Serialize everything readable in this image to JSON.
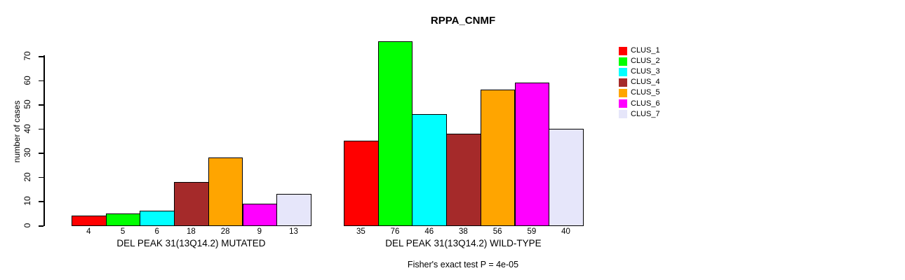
{
  "chart_data": {
    "type": "bar",
    "title": "RPPA_CNMF",
    "ylabel": "number of cases",
    "xlabel": "",
    "ylim": [
      0,
      70
    ],
    "yticks": [
      0,
      10,
      20,
      30,
      40,
      50,
      60,
      70
    ],
    "grid": false,
    "legend_position": "right",
    "clusters": [
      {
        "name": "CLUS_1",
        "color": "#FF0000"
      },
      {
        "name": "CLUS_2",
        "color": "#00FF00"
      },
      {
        "name": "CLUS_3",
        "color": "#00FFFF"
      },
      {
        "name": "CLUS_4",
        "color": "#A52A2A"
      },
      {
        "name": "CLUS_5",
        "color": "#FFA500"
      },
      {
        "name": "CLUS_6",
        "color": "#FF00FF"
      },
      {
        "name": "CLUS_7",
        "color": "#E6E6FA"
      }
    ],
    "groups": [
      {
        "id": "mutated",
        "label": "DEL PEAK 31(13Q14.2) MUTATED",
        "values": [
          4,
          5,
          6,
          18,
          28,
          9,
          13
        ]
      },
      {
        "id": "wild-type",
        "label": "DEL PEAK 31(13Q14.2) WILD-TYPE",
        "values": [
          35,
          76,
          46,
          38,
          56,
          59,
          40
        ]
      }
    ],
    "annotation": "Fisher's exact test P = 4e-05"
  }
}
